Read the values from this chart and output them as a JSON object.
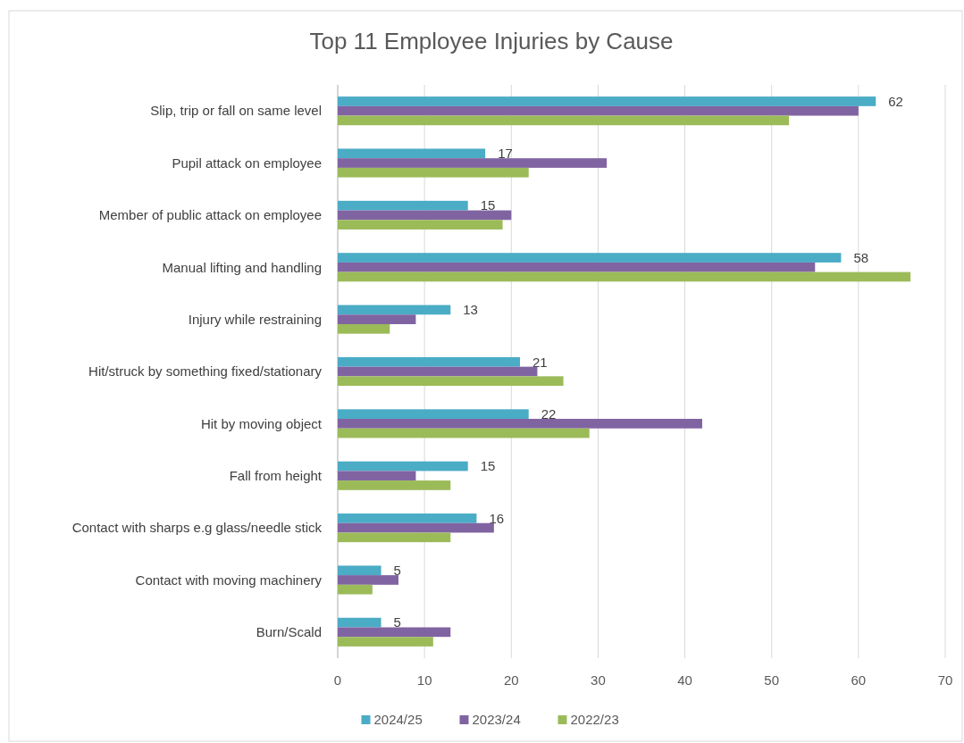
{
  "chart_data": {
    "type": "bar",
    "orientation": "horizontal",
    "title": "Top 11 Employee Injuries by Cause",
    "categories": [
      "Slip, trip or fall on same level",
      "Pupil attack on employee",
      "Member of public attack on employee",
      "Manual lifting and handling",
      "Injury while restraining",
      "Hit/struck by something fixed/stationary",
      "Hit by moving object",
      "Fall from height",
      "Contact with sharps e.g glass/needle stick",
      "Contact with moving machinery",
      "Burn/Scald"
    ],
    "series": [
      {
        "name": "2024/25",
        "color": "#4bacc6",
        "values": [
          62,
          17,
          15,
          58,
          13,
          21,
          22,
          15,
          16,
          5,
          5
        ],
        "value_labels": [
          "62",
          "17",
          "15",
          "58",
          "13",
          "21",
          "22",
          "15",
          "16",
          "5",
          "5"
        ]
      },
      {
        "name": "2023/24",
        "color": "#8064a2",
        "values": [
          60,
          31,
          20,
          55,
          9,
          23,
          42,
          9,
          18,
          7,
          13
        ]
      },
      {
        "name": "2022/23",
        "color": "#9bbb59",
        "values": [
          52,
          22,
          19,
          66,
          6,
          26,
          29,
          13,
          13,
          4,
          11
        ]
      }
    ],
    "xlim": [
      0,
      70
    ],
    "xticks": [
      0,
      10,
      20,
      30,
      40,
      50,
      60,
      70
    ],
    "grid": "x",
    "legend": "bottom"
  }
}
